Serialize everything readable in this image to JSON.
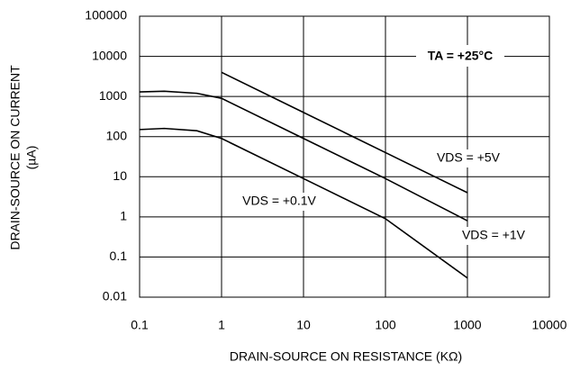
{
  "chart_data": {
    "type": "line",
    "x_label": "DRAIN-SOURCE ON RESISTANCE (KΩ)",
    "y_label": [
      "DRAIN-SOURCE ON CURRENT",
      "(µA)"
    ],
    "annotation": "TA = +25°C",
    "x": [
      0.1,
      0.2,
      0.5,
      1,
      10,
      100,
      1000
    ],
    "series": [
      {
        "name": "VDS = +5V",
        "color": "#000000",
        "values": [
          null,
          null,
          null,
          4000,
          400,
          40,
          4
        ]
      },
      {
        "name": "VDS = +1V",
        "color": "#000000",
        "values": [
          1300,
          1350,
          1200,
          900,
          90,
          9,
          0.8
        ]
      },
      {
        "name": "VDS = +0.1V",
        "color": "#000000",
        "values": [
          150,
          160,
          140,
          90,
          9,
          0.9,
          0.03
        ]
      }
    ],
    "x_log": true,
    "y_log": true,
    "xlim": [
      0.1,
      10000
    ],
    "ylim": [
      0.01,
      100000
    ],
    "xticks": [
      0.1,
      1,
      10,
      100,
      1000,
      10000
    ],
    "yticks": [
      0.01,
      0.1,
      1,
      10,
      100,
      1000,
      10000,
      100000
    ],
    "grid": true
  }
}
